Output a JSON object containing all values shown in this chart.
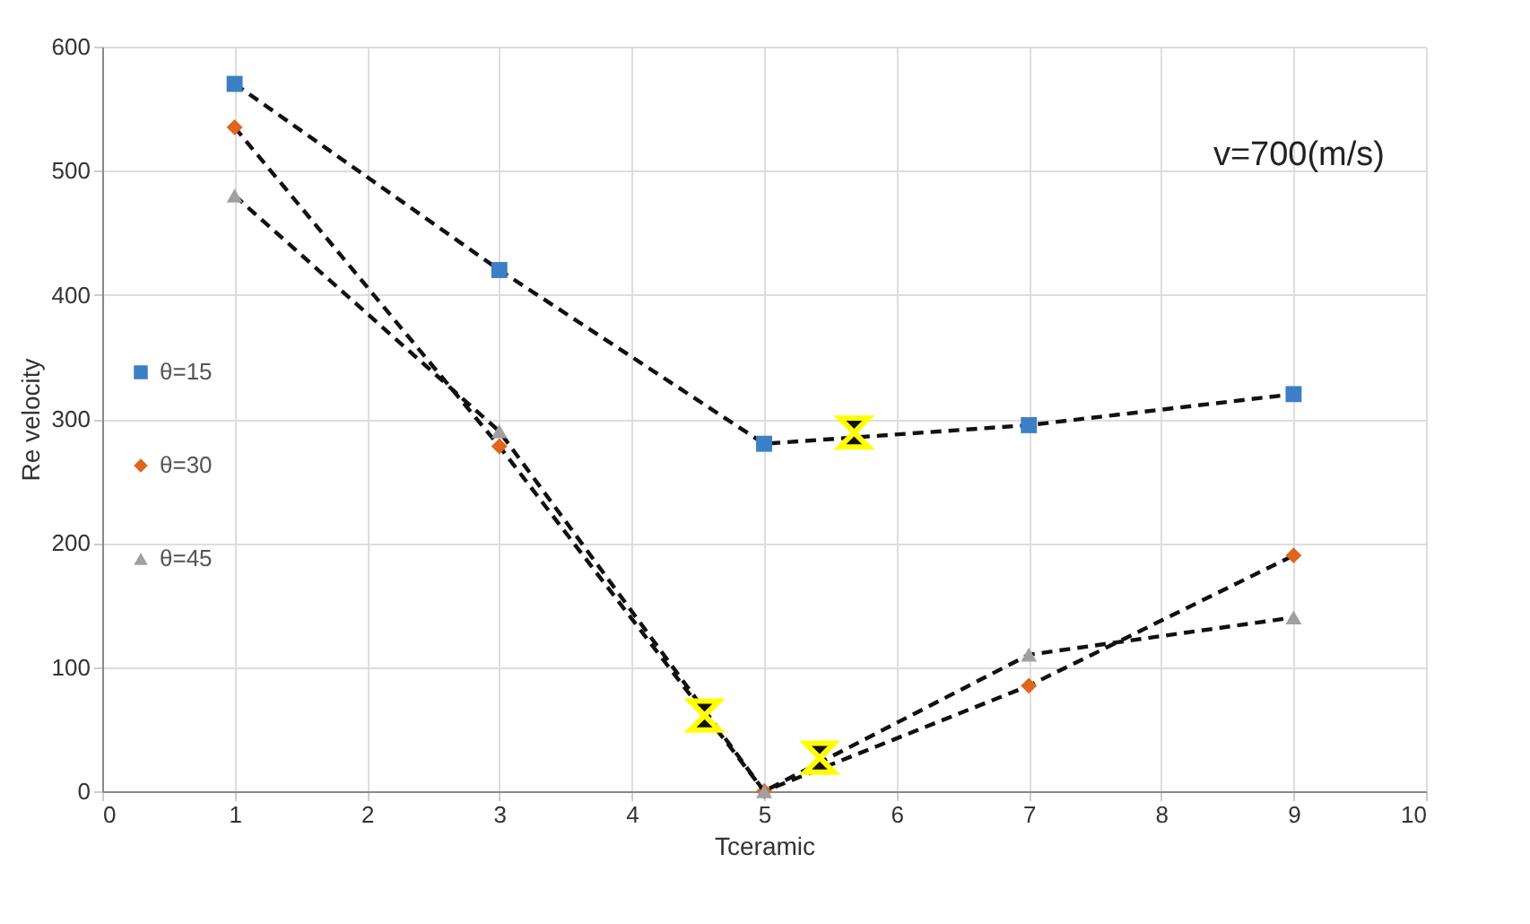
{
  "chart_data": {
    "type": "line",
    "xlabel": "Tceramic",
    "ylabel": "Re velocity",
    "annotations": [
      "v=700(m/s)"
    ],
    "xlim": [
      0,
      10
    ],
    "xticks": [
      0,
      1,
      2,
      3,
      4,
      5,
      6,
      7,
      8,
      9,
      10
    ],
    "ylim": [
      0,
      600
    ],
    "yticks": [
      0,
      100,
      200,
      300,
      400,
      500,
      600
    ],
    "grid": true,
    "legend": "left",
    "line_style": "dashed",
    "series": [
      {
        "name": "θ=15",
        "color": "#3c7fc6",
        "marker": "square",
        "x": [
          1,
          3,
          5,
          7,
          9
        ],
        "values": [
          570,
          420,
          280,
          295,
          320
        ]
      },
      {
        "name": "θ=30",
        "color": "#e0651f",
        "marker": "diamond",
        "x": [
          1,
          3,
          5,
          7,
          9
        ],
        "values": [
          535,
          278,
          0,
          85,
          190
        ]
      },
      {
        "name": "θ=45",
        "color": "#a0a0a0",
        "marker": "triangle",
        "x": [
          1,
          3,
          5,
          7,
          9
        ],
        "values": [
          480,
          290,
          0,
          110,
          140
        ]
      },
      {
        "type": "scatter",
        "color": "#ffff00",
        "x": [
          4.55,
          5.68,
          5.42
        ],
        "values": [
          61,
          289,
          27
        ]
      }
    ]
  }
}
